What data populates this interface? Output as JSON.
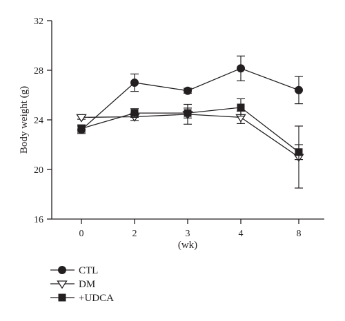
{
  "chart_data": {
    "type": "line",
    "categories": [
      "0",
      "2",
      "3",
      "4",
      "8"
    ],
    "xlabel": "(wk)",
    "ylabel": "Body weight (g)",
    "ylim": [
      16,
      32
    ],
    "yticks": [
      "16",
      "20",
      "24",
      "28",
      "32"
    ],
    "grid": false,
    "legend_position": "bottom-left",
    "series": [
      {
        "name": "CTL",
        "marker": "filled-circle",
        "color": "#231f20",
        "values": [
          23.2,
          27.0,
          26.35,
          28.15,
          26.4
        ],
        "errors": [
          0.3,
          0.7,
          0.2,
          1.0,
          1.1
        ]
      },
      {
        "name": "DM",
        "marker": "open-triangle-down",
        "color": "#231f20",
        "values": [
          24.2,
          24.25,
          24.45,
          24.2,
          21.0
        ],
        "errors": [
          0.15,
          0.3,
          0.8,
          0.5,
          2.5
        ]
      },
      {
        "name": "+UDCA",
        "marker": "filled-square",
        "color": "#231f20",
        "values": [
          23.3,
          24.55,
          24.55,
          25.0,
          21.4
        ],
        "errors": [
          0.3,
          0.35,
          0.4,
          0.7,
          0.6
        ]
      }
    ]
  }
}
